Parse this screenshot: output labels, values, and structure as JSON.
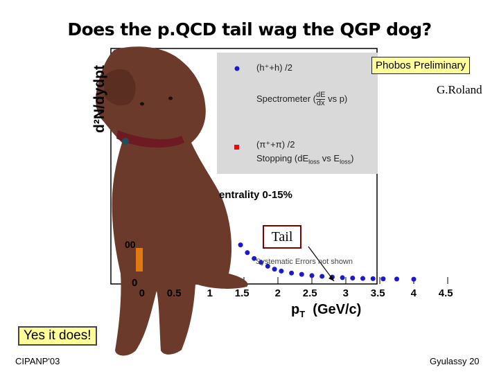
{
  "slide": {
    "title": "Does the p.QCD tail wag the QGP dog?",
    "answer": "Yes it does!",
    "footer_left": "CIPANP'03",
    "footer_right": "Gyulassy  20"
  },
  "plot": {
    "y_label": "d²N/dydpt",
    "x_label": "p",
    "x_label_sub": "T",
    "x_label_unit": "(GeV/c)",
    "x_ticks": [
      "0",
      "0.5",
      "1",
      "1.5",
      "2",
      "2.5",
      "3",
      "3.5",
      "4",
      "4.5"
    ],
    "y_tick_upper": "00",
    "y_tick_zero": "0",
    "centrality": "entrality 0-15%",
    "phobos_tag": "Phobos Preliminary",
    "credit": "G.Roland",
    "note": "Systematic Errors not shown",
    "tail_callout": "Tail",
    "legend": {
      "series1_label": "(h⁺+h) /2",
      "series1_color": "#1a1acc",
      "method1": "Spectrometer (",
      "method1_frac_top": "dE",
      "method1_frac_bottom": "dx",
      "method1_end": "vs p)",
      "series2_label": "(π⁺+π) /2",
      "series2_color": "#dd1111",
      "method2_a": "Stopping (dE",
      "method2_sub1": "loss",
      "method2_b": " vs E",
      "method2_sub2": "loss",
      "method2_end": ")"
    }
  },
  "chart_data": {
    "type": "scatter",
    "xlabel": "pT (GeV/c)",
    "ylabel": "d²N/dydpt",
    "series": [
      {
        "name": "(h⁺+h)/2",
        "x": [
          1.45,
          1.55,
          1.65,
          1.75,
          1.85,
          1.95,
          2.05,
          2.2,
          2.35,
          2.5,
          2.65,
          2.8,
          2.95,
          3.1,
          3.25,
          3.4,
          3.55,
          3.75,
          4.0
        ],
        "y": [
          1.8,
          1.4,
          1.1,
          0.9,
          0.7,
          0.55,
          0.45,
          0.35,
          0.28,
          0.22,
          0.18,
          0.14,
          0.11,
          0.09,
          0.07,
          0.06,
          0.05,
          0.04,
          0.03
        ]
      }
    ]
  }
}
